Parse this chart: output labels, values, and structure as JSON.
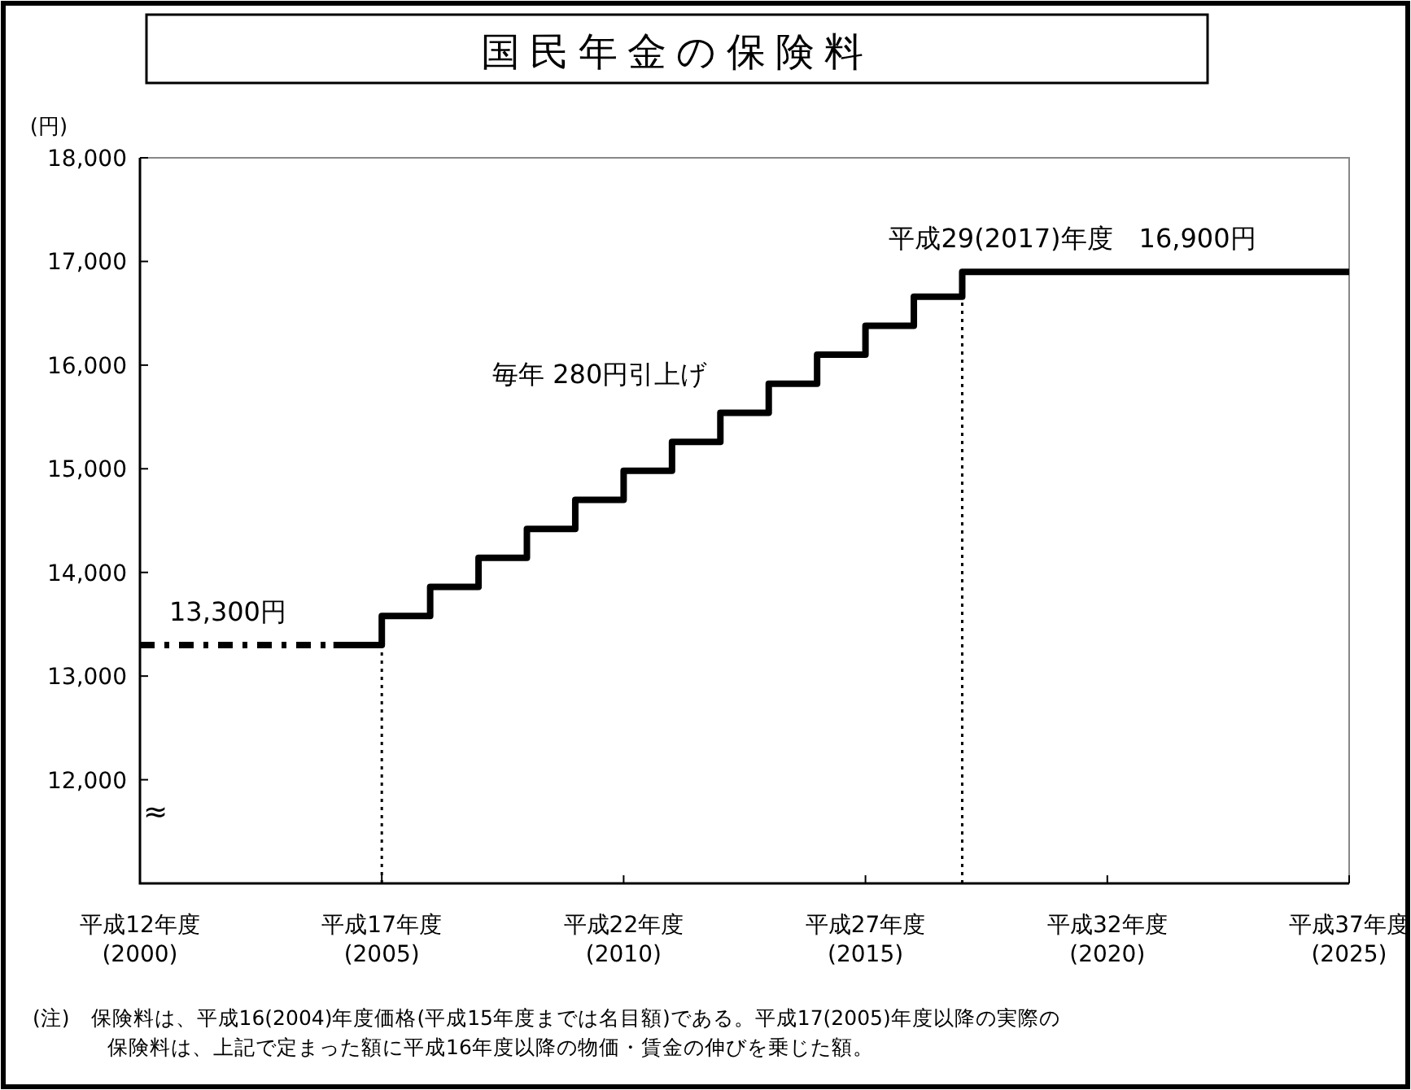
{
  "chart_data": {
    "type": "step",
    "title": "国民年金の保険料",
    "ylabel": "(円)",
    "categories": [
      "平成12年度\n(2000)",
      null,
      null,
      null,
      null,
      "平成17年度\n(2005)",
      null,
      null,
      null,
      null,
      "平成22年度\n(2010)",
      null,
      null,
      null,
      null,
      "平成27年度\n(2015)",
      null,
      null,
      null,
      null,
      "平成32年度\n(2020)",
      null,
      null,
      null,
      null,
      "平成37年度\n(2025)"
    ],
    "ylim": [
      11000,
      18000
    ],
    "yticks": [
      {
        "value": 12000,
        "label": "12,000"
      },
      {
        "value": 13000,
        "label": "13,000"
      },
      {
        "value": 14000,
        "label": "14,000"
      },
      {
        "value": 15000,
        "label": "15,000"
      },
      {
        "value": 16000,
        "label": "16,000"
      },
      {
        "value": 17000,
        "label": "17,000"
      },
      {
        "value": 18000,
        "label": "18,000"
      }
    ],
    "series": [
      {
        "color": "#000000",
        "line_style": "solid",
        "values": [
          null,
          null,
          null,
          null,
          13300,
          13580,
          13860,
          14140,
          14420,
          14700,
          14980,
          15260,
          15540,
          15820,
          16100,
          16380,
          16660,
          16900,
          16900,
          16900,
          16900,
          16900,
          16900,
          16900,
          16900,
          16900
        ]
      },
      {
        "color": "#000000",
        "line_style": "dashed",
        "values": [
          13300,
          13300,
          13300,
          13300,
          13300,
          null,
          null,
          null,
          null,
          null,
          null,
          null,
          null,
          null,
          null,
          null,
          null,
          null,
          null,
          null,
          null,
          null,
          null,
          null,
          null,
          null
        ]
      }
    ],
    "ref_lines": [
      {
        "axis": "x",
        "value": "平成17年度\n(2005)",
        "line_style": "dotted",
        "color": "#000000"
      },
      {
        "axis": "x",
        "value": null,
        "line_style": "dotted",
        "color": "#000000"
      }
    ],
    "annotations": [
      {
        "text": "13,300円",
        "x": "平成12年度\n(2000)",
        "y": 13300
      },
      {
        "text": "平成29(2017)年度　16,900円",
        "y": 16900
      },
      "毎年 280円引上げ",
      "≈",
      "(注)　保険料は、平成16(2004)年度価格(平成15年度までは名目額)である。平成17(2005)年度以降の実際の保険料は、上記で定まった額に平成16年度以降の物価・賃金の伸びを乗じた額。"
    ]
  }
}
